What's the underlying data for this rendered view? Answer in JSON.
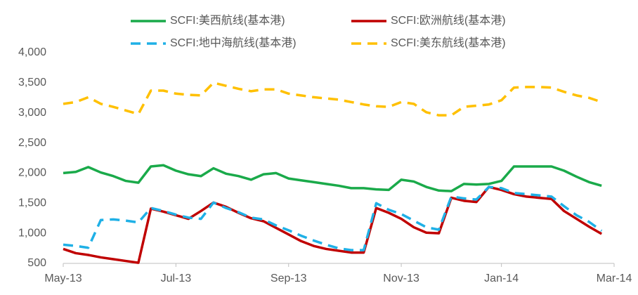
{
  "chart_data": {
    "type": "line",
    "categories": [
      "May-13",
      null,
      null,
      null,
      null,
      null,
      null,
      null,
      null,
      "Jul-13",
      null,
      null,
      null,
      null,
      null,
      null,
      null,
      null,
      "Sep-13",
      null,
      null,
      null,
      null,
      null,
      null,
      null,
      null,
      "Nov-13",
      null,
      null,
      null,
      null,
      null,
      null,
      null,
      "Jan-14",
      null,
      null,
      null,
      null,
      null,
      null,
      null,
      null,
      "Mar-14"
    ],
    "series": [
      {
        "name": "SCFI:美西航线(基本港)",
        "color": "#1aaa4a",
        "dash": false,
        "values": [
          2000,
          2020,
          2100,
          2010,
          1950,
          1870,
          1840,
          2110,
          2130,
          2040,
          1980,
          1950,
          2080,
          1990,
          1950,
          1890,
          1980,
          2000,
          1910,
          1880,
          1850,
          1820,
          1790,
          1750,
          1750,
          1730,
          1720,
          1890,
          1860,
          1770,
          1710,
          1700,
          1820,
          1810,
          1820,
          1870,
          2110,
          2110,
          2110,
          2110,
          2040,
          1940,
          1850,
          1790,
          null
        ]
      },
      {
        "name": "SCFI:欧洲航线(基本港)",
        "color": "#c00000",
        "dash": false,
        "values": [
          740,
          670,
          640,
          600,
          570,
          540,
          510,
          1410,
          1360,
          1300,
          1240,
          1370,
          1510,
          1440,
          1340,
          1250,
          1200,
          1090,
          980,
          870,
          790,
          740,
          710,
          680,
          680,
          1420,
          1340,
          1240,
          1100,
          1010,
          1000,
          1590,
          1540,
          1520,
          1770,
          1720,
          1650,
          1610,
          1590,
          1570,
          1370,
          1240,
          1110,
          990,
          null
        ]
      },
      {
        "name": "SCFI:地中海航线(基本港)",
        "color": "#1fb0e6",
        "dash": true,
        "values": [
          810,
          790,
          760,
          1220,
          1230,
          1210,
          1180,
          1420,
          1370,
          1310,
          1260,
          1240,
          1510,
          1420,
          1350,
          1260,
          1230,
          1130,
          1050,
          960,
          880,
          810,
          750,
          720,
          720,
          1500,
          1390,
          1320,
          1210,
          1100,
          1060,
          1610,
          1580,
          1560,
          1770,
          1750,
          1670,
          1650,
          1630,
          1610,
          1450,
          1300,
          1190,
          1040,
          null
        ]
      },
      {
        "name": "SCFI:美东航线(基本港)",
        "color": "#ffc000",
        "dash": true,
        "values": [
          3150,
          3180,
          3260,
          3150,
          3100,
          3040,
          2980,
          3370,
          3370,
          3320,
          3300,
          3290,
          3500,
          3450,
          3400,
          3360,
          3390,
          3390,
          3320,
          3290,
          3260,
          3240,
          3220,
          3180,
          3140,
          3110,
          3100,
          3180,
          3150,
          3010,
          2960,
          2960,
          3100,
          3120,
          3140,
          3210,
          3420,
          3430,
          3430,
          3420,
          3350,
          3290,
          3250,
          3180,
          null
        ]
      }
    ],
    "ylim": [
      500,
      4000
    ],
    "yticks": [
      500,
      {
        "value": 1000,
        "label": "1,000"
      },
      {
        "value": 1500,
        "label": "1,500"
      },
      {
        "value": 2000,
        "label": "2,000"
      },
      {
        "value": 2500,
        "label": "2,500"
      },
      {
        "value": 3000,
        "label": "3,000"
      },
      {
        "value": 3500,
        "label": "3,500"
      },
      {
        "value": 4000,
        "label": "4,000"
      }
    ],
    "grid": false
  }
}
